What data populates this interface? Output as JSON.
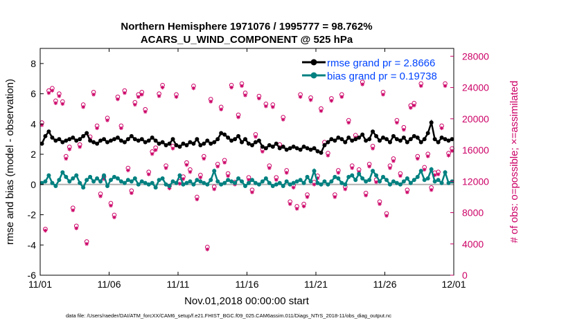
{
  "chart_data": {
    "type": "line",
    "title_line1": "Northern Hemisphere 1971076 / 1995777 = 98.762%",
    "title_line2": "ACARS_U_WIND_COMPONENT @ 525 hPa",
    "xlabel": "Nov.01,2018 00:00:00 start",
    "ylabel": "rmse and bias (model - observation)",
    "y2label": "# of obs: o=possible; ×=assimilated",
    "footer": "data file: /Users/raeder/DAI/ATM_forcXX/CAM6_setup/f.e21.FHIST_BGC.f09_025.CAM6assim.011/Diags_NTrS_2018-11/obs_diag_output.nc",
    "xlim": [
      0,
      30
    ],
    "ylim": [
      -6,
      9
    ],
    "y2lim": [
      0,
      29000
    ],
    "x_tick_labels": [
      "11/01",
      "11/06",
      "11/11",
      "11/16",
      "11/21",
      "11/26",
      "12/01"
    ],
    "x_tick_positions": [
      0,
      5,
      10,
      15,
      20,
      25,
      30
    ],
    "y_ticks": [
      "-6",
      "-4",
      "-2",
      "0",
      "2",
      "4",
      "6",
      "8"
    ],
    "y2_ticks": [
      "0",
      "4000",
      "8000",
      "12000",
      "16000",
      "20000",
      "24000",
      "28000"
    ],
    "legend": [
      "rmse grand pr = 2.8666",
      "bias grand pr = 0.19738"
    ],
    "colors": {
      "rmse": "#000000",
      "bias": "#008080",
      "obs": "#cc0066",
      "zero": "#b0b0b0"
    },
    "x": [
      0.125,
      0.375,
      0.625,
      0.875,
      1.125,
      1.375,
      1.625,
      1.875,
      2.125,
      2.375,
      2.625,
      2.875,
      3.125,
      3.375,
      3.625,
      3.875,
      4.125,
      4.375,
      4.625,
      4.875,
      5.125,
      5.375,
      5.625,
      5.875,
      6.125,
      6.375,
      6.625,
      6.875,
      7.125,
      7.375,
      7.625,
      7.875,
      8.125,
      8.375,
      8.625,
      8.875,
      9.125,
      9.375,
      9.625,
      9.875,
      10.125,
      10.375,
      10.625,
      10.875,
      11.125,
      11.375,
      11.625,
      11.875,
      12.125,
      12.375,
      12.625,
      12.875,
      13.125,
      13.375,
      13.625,
      13.875,
      14.125,
      14.375,
      14.625,
      14.875,
      15.125,
      15.375,
      15.625,
      15.875,
      16.125,
      16.375,
      16.625,
      16.875,
      17.125,
      17.375,
      17.625,
      17.875,
      18.125,
      18.375,
      18.625,
      18.875,
      19.125,
      19.375,
      19.625,
      19.875,
      20.125,
      20.375,
      20.625,
      20.875,
      21.125,
      21.375,
      21.625,
      21.875,
      22.125,
      22.375,
      22.625,
      22.875,
      23.125,
      23.375,
      23.625,
      23.875,
      24.125,
      24.375,
      24.625,
      24.875,
      25.125,
      25.375,
      25.625,
      25.875,
      26.125,
      26.375,
      26.625,
      26.875,
      27.125,
      27.375,
      27.625,
      27.875,
      28.125,
      28.375,
      28.625,
      28.875,
      29.125,
      29.375,
      29.625,
      29.875
    ],
    "series": [
      {
        "name": "rmse",
        "values": [
          2.7,
          3.2,
          3.5,
          3.1,
          2.9,
          3.0,
          2.8,
          2.9,
          3.0,
          3.1,
          2.9,
          3.0,
          3.2,
          3.4,
          2.9,
          2.8,
          2.7,
          2.9,
          3.0,
          2.8,
          2.9,
          3.0,
          3.1,
          2.9,
          2.8,
          3.0,
          3.2,
          3.0,
          2.9,
          3.0,
          2.8,
          2.9,
          3.1,
          2.9,
          2.7,
          2.8,
          2.6,
          2.7,
          3.0,
          2.6,
          2.5,
          2.7,
          2.6,
          2.8,
          2.7,
          3.0,
          2.6,
          2.7,
          2.9,
          2.7,
          2.8,
          3.0,
          3.4,
          3.3,
          3.1,
          2.9,
          3.0,
          3.2,
          2.8,
          3.0,
          2.7,
          2.6,
          2.8,
          2.9,
          2.5,
          2.4,
          2.6,
          2.5,
          2.7,
          2.4,
          2.5,
          2.3,
          2.4,
          2.5,
          2.4,
          2.3,
          2.5,
          2.4,
          2.3,
          2.4,
          2.2,
          2.1,
          2.6,
          2.8,
          3.0,
          2.9,
          3.1,
          3.0,
          2.8,
          3.1,
          2.9,
          3.0,
          3.1,
          3.3,
          2.9,
          3.0,
          3.5,
          3.2,
          2.9,
          3.1,
          3.0,
          2.8,
          3.2,
          3.0,
          2.9,
          3.1,
          2.8,
          3.0,
          3.2,
          3.1,
          2.8,
          3.0,
          3.4,
          4.1,
          3.0,
          2.8,
          3.1,
          3.0,
          2.9,
          3.0
        ]
      },
      {
        "name": "bias",
        "values": [
          0.1,
          0.2,
          0.6,
          0.1,
          -0.1,
          0.3,
          0.8,
          0.5,
          0.2,
          0.4,
          0.6,
          0.1,
          -0.2,
          0.3,
          0.5,
          0.2,
          0.4,
          0.2,
          0.6,
          -0.1,
          0.3,
          0.5,
          0.4,
          0.2,
          0.1,
          0.3,
          0.2,
          0.4,
          0.0,
          0.2,
          0.1,
          0.0,
          0.1,
          -0.2,
          0.3,
          0.4,
          0.0,
          -0.1,
          0.2,
          0.1,
          0.6,
          0.0,
          0.1,
          0.2,
          0.0,
          0.3,
          0.2,
          0.1,
          0.0,
          0.3,
          0.9,
          0.2,
          0.0,
          0.1,
          0.3,
          0.2,
          0.1,
          0.4,
          0.2,
          -0.1,
          0.1,
          0.3,
          0.1,
          0.0,
          0.2,
          0.4,
          0.1,
          -0.1,
          0.0,
          0.1,
          -0.1,
          0.2,
          0.0,
          0.1,
          0.2,
          0.3,
          0.1,
          0.5,
          0.2,
          0.9,
          0.1,
          0.0,
          0.2,
          0.0,
          0.2,
          0.5,
          0.4,
          0.1,
          0.0,
          0.5,
          0.6,
          0.3,
          0.7,
          0.4,
          0.2,
          0.3,
          0.9,
          0.6,
          0.2,
          0.5,
          0.3,
          0.0,
          0.2,
          0.1,
          0.0,
          0.2,
          0.4,
          0.1,
          0.3,
          0.5,
          0.9,
          0.3,
          0.4,
          1.0,
          0.2,
          0.3,
          0.1,
          0.8,
          0.1,
          0.2
        ]
      },
      {
        "name": "possible",
        "values": [
          19500,
          5900,
          23600,
          23900,
          22300,
          23200,
          22200,
          15200,
          16400,
          8600,
          6300,
          16700,
          21800,
          4300,
          17700,
          23400,
          19100,
          10400,
          12600,
          20100,
          9200,
          7700,
          22800,
          19100,
          23600,
          13700,
          10800,
          22100,
          23100,
          23400,
          21200,
          13200,
          15800,
          16300,
          23200,
          24300,
          14000,
          11400,
          16500,
          23100,
          12000,
          12600,
          14400,
          13500,
          24200,
          10000,
          12800,
          15200,
          3600,
          22500,
          11300,
          14200,
          21500,
          14700,
          13000,
          24300,
          11900,
          20500,
          24500,
          23300,
          12500,
          10900,
          18000,
          22900,
          16100,
          21900,
          14000,
          21800,
          12500,
          16700,
          20200,
          13400,
          9400,
          11500,
          8800,
          23100,
          9100,
          10300,
          22700,
          11900,
          12700,
          21300,
          17000,
          15600,
          22600,
          10300,
          13400,
          23100,
          11300,
          19800,
          14000,
          17900,
          13500,
          24700,
          10500,
          14200,
          16500,
          12200,
          9400,
          23400,
          7900,
          14000,
          14900,
          19800,
          13000,
          18900,
          10900,
          21700,
          22000,
          15200,
          24500,
          13800,
          15500,
          11200,
          13100,
          13200,
          19100,
          24500,
          15600,
          16200
        ]
      },
      {
        "name": "assimilated",
        "values": [
          19200,
          5700,
          23300,
          23600,
          22000,
          22900,
          21900,
          14900,
          16100,
          8300,
          6000,
          16400,
          21500,
          4000,
          17400,
          23100,
          18800,
          10100,
          12300,
          19800,
          8900,
          7400,
          22500,
          18800,
          23300,
          13400,
          10500,
          21800,
          22800,
          23100,
          20900,
          12900,
          15500,
          16000,
          22900,
          24000,
          13700,
          11100,
          16200,
          22800,
          11700,
          12300,
          14100,
          13200,
          23900,
          9700,
          12500,
          14900,
          3300,
          22200,
          11000,
          13900,
          21200,
          14400,
          12700,
          24000,
          11600,
          20200,
          24200,
          23000,
          12200,
          10600,
          17700,
          22600,
          15800,
          21600,
          13700,
          21500,
          12200,
          16400,
          19900,
          13100,
          9100,
          11200,
          8500,
          22800,
          8800,
          10000,
          22400,
          11600,
          12400,
          21000,
          16700,
          15300,
          22300,
          10000,
          13100,
          22800,
          11000,
          19500,
          13700,
          17600,
          13200,
          24400,
          10200,
          13900,
          16200,
          11900,
          9100,
          23100,
          7600,
          13700,
          14600,
          19500,
          12700,
          18600,
          10600,
          21400,
          21700,
          14900,
          24200,
          13500,
          15200,
          10900,
          12800,
          12900,
          18800,
          24200,
          15300,
          15900
        ]
      }
    ]
  }
}
